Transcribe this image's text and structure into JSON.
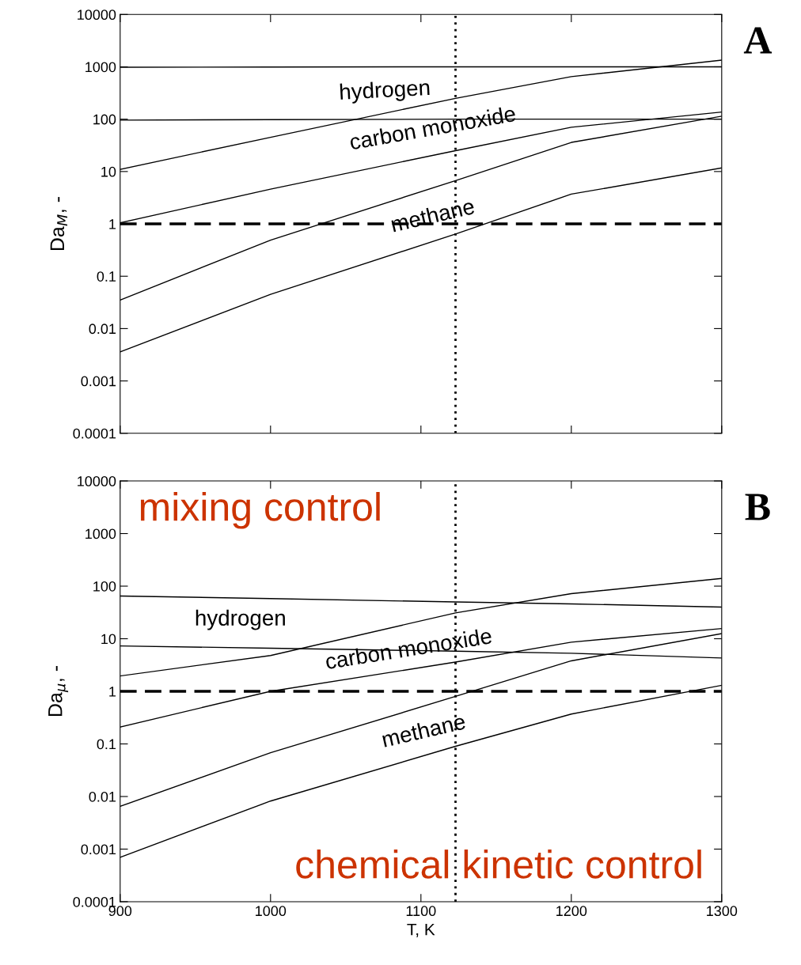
{
  "chart_data": [
    {
      "type": "line",
      "ylabel": "Da$_{M}$, -",
      "log": "y",
      "xlim": [
        900,
        1300
      ],
      "xticks": [
        900,
        1000,
        1100,
        1200,
        1300
      ],
      "ylim": [
        0.0001,
        10000
      ],
      "yticks": [
        0.0001,
        0.001,
        0.01,
        0.1,
        1,
        10,
        100,
        1000,
        10000
      ],
      "tick_labels": "y",
      "grid": false,
      "legend": false,
      "marker": "none",
      "line_style": "solid",
      "x": [
        900,
        1000,
        1123,
        1200,
        1300
      ],
      "series": [
        {
          "color": "#000000",
          "values": [
            980,
            990,
            1000,
            1000,
            1000
          ]
        },
        {
          "color": "#000000",
          "values": [
            96,
            98,
            100,
            100,
            100
          ]
        },
        {
          "color": "#000000",
          "values": [
            11,
            45,
            250,
            650,
            1340
          ]
        },
        {
          "color": "#000000",
          "values": [
            1.05,
            4.6,
            25,
            70,
            137
          ]
        },
        {
          "color": "#000000",
          "values": [
            0.035,
            0.49,
            6.7,
            36,
            114
          ]
        },
        {
          "color": "#000000",
          "values": [
            0.0036,
            0.045,
            0.64,
            3.7,
            11.7
          ]
        }
      ],
      "ref_lines": [
        {
          "axis": "x",
          "value": 1123,
          "line_style": "dotted",
          "color": "#000000"
        },
        {
          "axis": "y",
          "value": 1,
          "line_style": "dashed",
          "color": "#000000"
        }
      ],
      "annotations": [
        "hydrogen",
        "carbon monoxide",
        "methane",
        "A"
      ]
    },
    {
      "type": "line",
      "xlabel": "T, K",
      "ylabel": "Da$_{μ}$, -",
      "log": "y",
      "xlim": [
        900,
        1300
      ],
      "xticks": [
        900,
        1000,
        1100,
        1200,
        1300
      ],
      "ylim": [
        0.0001,
        10000
      ],
      "yticks": [
        0.0001,
        0.001,
        0.01,
        0.1,
        1,
        10,
        100,
        1000,
        10000
      ],
      "grid": false,
      "legend": false,
      "marker": "none",
      "line_style": "solid",
      "x": [
        900,
        1000,
        1123,
        1200,
        1300
      ],
      "series": [
        {
          "color": "#000000",
          "values": [
            65,
            58,
            50,
            46,
            40
          ]
        },
        {
          "color": "#000000",
          "values": [
            7.3,
            6.6,
            5.8,
            5.3,
            4.3
          ]
        },
        {
          "color": "#000000",
          "values": [
            1.96,
            4.8,
            31,
            72,
            140
          ]
        },
        {
          "color": "#000000",
          "values": [
            0.21,
            1.0,
            3.6,
            8.6,
            15.6
          ]
        },
        {
          "color": "#000000",
          "values": [
            0.0065,
            0.068,
            0.8,
            3.8,
            12.5
          ]
        },
        {
          "color": "#000000",
          "values": [
            0.0007,
            0.0082,
            0.09,
            0.37,
            1.3
          ]
        }
      ],
      "ref_lines": [
        {
          "axis": "x",
          "value": 1123,
          "line_style": "dotted",
          "color": "#000000"
        },
        {
          "axis": "y",
          "value": 1,
          "line_style": "dashed",
          "color": "#000000"
        }
      ],
      "annotations": [
        "hydrogen",
        "carbon monoxide",
        "methane",
        "B",
        "mixing control",
        "chemical kinetic control"
      ]
    }
  ]
}
